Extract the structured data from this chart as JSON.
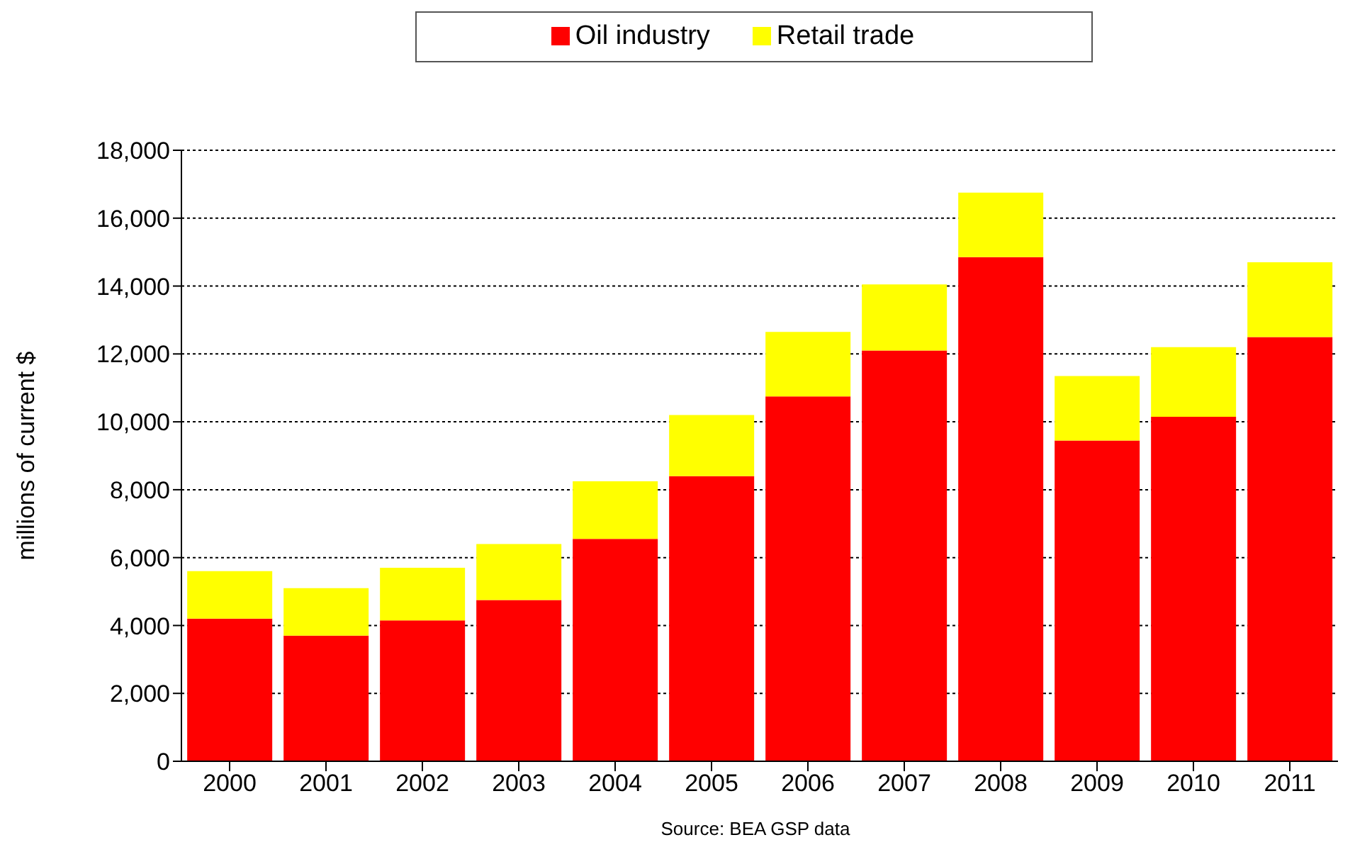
{
  "chart_data": {
    "type": "bar",
    "stacked": true,
    "categories": [
      "2000",
      "2001",
      "2002",
      "2003",
      "2004",
      "2005",
      "2006",
      "2007",
      "2008",
      "2009",
      "2010",
      "2011"
    ],
    "series": [
      {
        "name": "Oil industry",
        "color": "#ff0000",
        "values": [
          4200,
          3700,
          4150,
          4750,
          6550,
          8400,
          10750,
          12100,
          14850,
          9450,
          10150,
          12500
        ]
      },
      {
        "name": "Retail trade",
        "color": "#ffff00",
        "values": [
          1400,
          1400,
          1550,
          1650,
          1700,
          1800,
          1900,
          1950,
          1900,
          1900,
          2050,
          2200
        ]
      }
    ],
    "ylabel": "millions of current $",
    "ylim": [
      0,
      18000
    ],
    "yticks": [
      0,
      {
        "value": 2000,
        "label": "2,000"
      },
      {
        "value": 4000,
        "label": "4,000"
      },
      {
        "value": 6000,
        "label": "6,000"
      },
      {
        "value": 8000,
        "label": "8,000"
      },
      {
        "value": 10000,
        "label": "10,000"
      },
      {
        "value": 12000,
        "label": "12,000"
      },
      {
        "value": 14000,
        "label": "14,000"
      },
      {
        "value": 16000,
        "label": "16,000"
      },
      {
        "value": 18000,
        "label": "18,000"
      }
    ],
    "grid": "y",
    "legend": "top",
    "annotations": [
      "Source:  BEA GSP data"
    ]
  }
}
